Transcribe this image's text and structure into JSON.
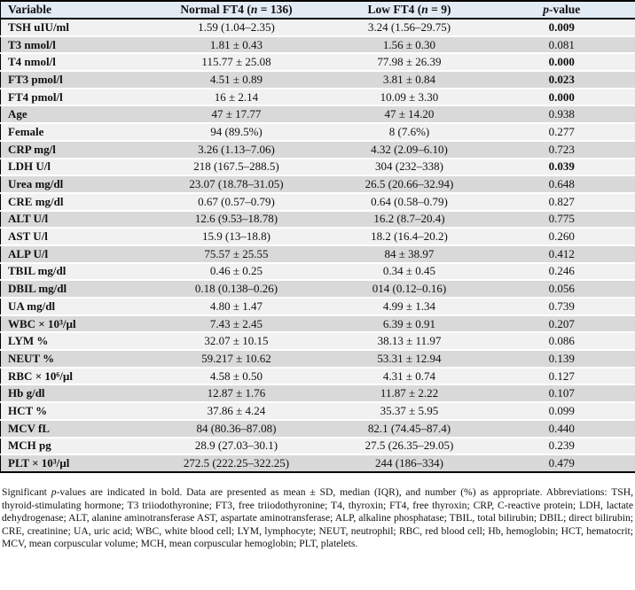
{
  "colors": {
    "header_bg": "#e2eaf4",
    "row_light": "#f1f1f2",
    "row_dark": "#d9d9da",
    "border": "#000000"
  },
  "table": {
    "columns": [
      {
        "label": "Variable"
      },
      {
        "pre": "Normal FT4 (",
        "italic": "n",
        "post": " = 136)"
      },
      {
        "pre": "Low FT4 (",
        "italic": "n",
        "post": " = 9)"
      },
      {
        "pre": "",
        "italic": "p",
        "post": "-value"
      }
    ],
    "rows": [
      {
        "variable": "TSH uIU/ml",
        "normal": "1.59 (1.04–2.35)",
        "low": "3.24 (1.56–29.75)",
        "p": "0.009",
        "significant": true
      },
      {
        "variable": "T3 nmol/l",
        "normal": "1.81 ± 0.43",
        "low": "1.56 ± 0.30",
        "p": "0.081",
        "significant": false
      },
      {
        "variable": "T4 nmol/l",
        "normal": "115.77 ± 25.08",
        "low": "77.98 ± 26.39",
        "p": "0.000",
        "significant": true
      },
      {
        "variable": "FT3 pmol/l",
        "normal": "4.51 ± 0.89",
        "low": "3.81 ± 0.84",
        "p": "0.023",
        "significant": true
      },
      {
        "variable": "FT4 pmol/l",
        "normal": "16 ± 2.14",
        "low": "10.09 ± 3.30",
        "p": "0.000",
        "significant": true
      },
      {
        "variable": "Age",
        "normal": "47 ± 17.77",
        "low": "47 ± 14.20",
        "p": "0.938",
        "significant": false
      },
      {
        "variable": "Female",
        "normal": "94 (89.5%)",
        "low": "8 (7.6%)",
        "p": "0.277",
        "significant": false
      },
      {
        "variable": "CRP mg/l",
        "normal": "3.26 (1.13–7.06)",
        "low": "4.32 (2.09–6.10)",
        "p": "0.723",
        "significant": false
      },
      {
        "variable": "LDH U/l",
        "normal": "218 (167.5–288.5)",
        "low": "304 (232–338)",
        "p": "0.039",
        "significant": true
      },
      {
        "variable": "Urea mg/dl",
        "normal": "23.07 (18.78–31.05)",
        "low": "26.5 (20.66–32.94)",
        "p": "0.648",
        "significant": false
      },
      {
        "variable": "CRE mg/dl",
        "normal": "0.67 (0.57–0.79)",
        "low": "0.64 (0.58–0.79)",
        "p": "0.827",
        "significant": false
      },
      {
        "variable": "ALT U/l",
        "normal": "12.6 (9.53–18.78)",
        "low": "16.2 (8.7–20.4)",
        "p": "0.775",
        "significant": false
      },
      {
        "variable": "AST U/l",
        "normal": "15.9 (13–18.8)",
        "low": "18.2 (16.4–20.2)",
        "p": "0.260",
        "significant": false
      },
      {
        "variable": "ALP U/l",
        "normal": "75.57 ± 25.55",
        "low": "84 ± 38.97",
        "p": "0.412",
        "significant": false
      },
      {
        "variable": "TBIL mg/dl",
        "normal": "0.46 ± 0.25",
        "low": "0.34 ± 0.45",
        "p": "0.246",
        "significant": false
      },
      {
        "variable": "DBIL mg/dl",
        "normal": "0.18 (0.138–0.26)",
        "low": "014 (0.12–0.16)",
        "p": "0.056",
        "significant": false
      },
      {
        "variable": "UA mg/dl",
        "normal": "4.80 ± 1.47",
        "low": "4.99 ± 1.34",
        "p": "0.739",
        "significant": false
      },
      {
        "variable": "WBC × 10³/µl",
        "normal": "7.43 ± 2.45",
        "low": "6.39 ± 0.91",
        "p": "0.207",
        "significant": false
      },
      {
        "variable": "LYM %",
        "normal": "32.07 ± 10.15",
        "low": "38.13 ± 11.97",
        "p": "0.086",
        "significant": false
      },
      {
        "variable": "NEUT %",
        "normal": "59.217 ± 10.62",
        "low": "53.31 ± 12.94",
        "p": "0.139",
        "significant": false
      },
      {
        "variable": "RBC × 10⁶/µl",
        "normal": "4.58 ± 0.50",
        "low": "4.31 ± 0.74",
        "p": "0.127",
        "significant": false
      },
      {
        "variable": "Hb g/dl",
        "normal": "12.87 ± 1.76",
        "low": "11.87 ± 2.22",
        "p": "0.107",
        "significant": false
      },
      {
        "variable": "HCT %",
        "normal": "37.86 ± 4.24",
        "low": "35.37 ± 5.95",
        "p": "0.099",
        "significant": false
      },
      {
        "variable": "MCV fL",
        "normal": "84 (80.36–87.08)",
        "low": "82.1 (74.45–87.4)",
        "p": "0.440",
        "significant": false
      },
      {
        "variable": "MCH pg",
        "normal": "28.9 (27.03–30.1)",
        "low": "27.5 (26.35–29.05)",
        "p": "0.239",
        "significant": false
      },
      {
        "variable": "PLT × 10³/µl",
        "normal": "272.5 (222.25–322.25)",
        "low": "244 (186–334)",
        "p": "0.479",
        "significant": false
      }
    ]
  },
  "footnote": {
    "pre": "Significant ",
    "italic": "p",
    "post": "-values are indicated in bold. Data are presented as mean ± SD, median (IQR), and number (%) as appropriate. Abbreviations: TSH, thyroid-stimulating hormone; T3 triiodothyronine; FT3, free triiodothyronine; T4, thyroxin; FT4, free thyroxin; CRP, C-reactive protein; LDH, lactate dehydrogenase; ALT, alanine aminotransferase AST, aspartate aminotransferase; ALP, alkaline phosphatase; TBIL, total bilirubin; DBIL; direct bilirubin; CRE, creatinine; UA, uric acid; WBC, white blood cell; LYM, lymphocyte; NEUT, neutrophil; RBC, red blood cell; Hb, hemoglobin; HCT, hematocrit; MCV, mean corpuscular volume; MCH, mean corpuscular hemoglobin; PLT, platelets."
  }
}
